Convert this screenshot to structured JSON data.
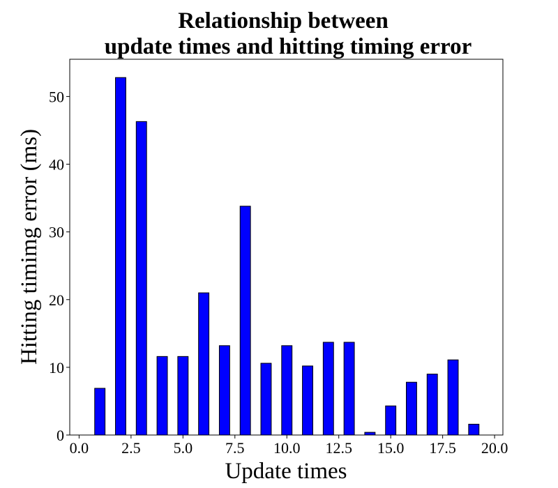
{
  "chart_data": {
    "type": "bar",
    "title_lines": [
      "Relationship between",
      "update times and hitting timing error"
    ],
    "xlabel": "Update times",
    "ylabel": "Hitting timimg error (ms)",
    "x": [
      1,
      2,
      3,
      4,
      5,
      6,
      7,
      8,
      9,
      10,
      11,
      12,
      13,
      14,
      15,
      16,
      17,
      18,
      19
    ],
    "values": [
      6.9,
      52.8,
      46.3,
      11.6,
      11.6,
      21.0,
      13.2,
      33.8,
      10.6,
      13.2,
      10.2,
      13.7,
      13.7,
      0.4,
      4.3,
      7.8,
      9.0,
      11.1,
      1.6
    ],
    "bar_width": 0.5,
    "xlim": [
      -0.45,
      20.4
    ],
    "ylim": [
      0,
      55.5
    ],
    "xticks": [
      0.0,
      2.5,
      5.0,
      7.5,
      10.0,
      12.5,
      15.0,
      17.5,
      20.0
    ],
    "xtick_labels": [
      "0.0",
      "2.5",
      "5.0",
      "7.5",
      "10.0",
      "12.5",
      "15.0",
      "17.5",
      "20.0"
    ],
    "yticks": [
      0,
      10,
      20,
      30,
      40,
      50
    ],
    "ytick_labels": [
      "0",
      "10",
      "20",
      "30",
      "40",
      "50"
    ],
    "bar_color": "#0000ff",
    "edge_color": "#000000",
    "grid": false
  }
}
